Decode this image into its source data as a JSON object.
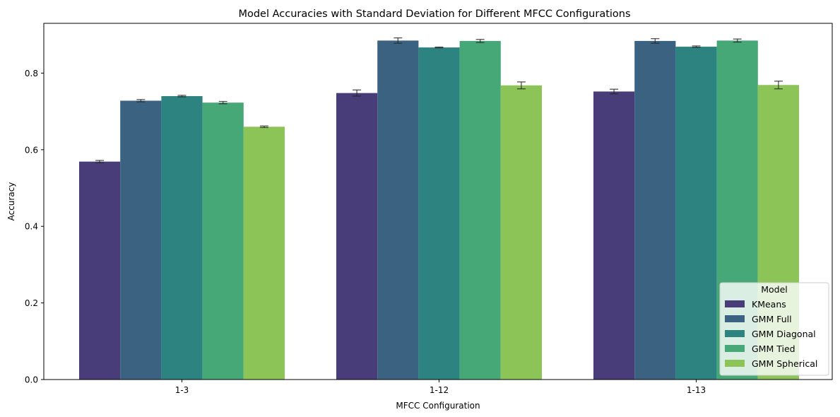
{
  "chart_data": {
    "type": "bar",
    "title": "Model Accuracies with Standard Deviation for Different MFCC Configurations",
    "xlabel": "MFCC Configuration",
    "ylabel": "Accuracy",
    "ylim": [
      0,
      0.93
    ],
    "yticks": [
      "0.0",
      "0.2",
      "0.4",
      "0.6",
      "0.8"
    ],
    "ytick_values": [
      0.0,
      0.2,
      0.4,
      0.6,
      0.8
    ],
    "categories": [
      "1-3",
      "1-12",
      "1-13"
    ],
    "legend": {
      "title": "Model",
      "placement": "lower-right"
    },
    "series": [
      {
        "name": "KMeans",
        "color": "#483d78",
        "values": [
          0.569,
          0.748,
          0.752
        ],
        "errors": [
          0.003,
          0.008,
          0.006
        ]
      },
      {
        "name": "GMM Full",
        "color": "#3b6381",
        "values": [
          0.728,
          0.885,
          0.884
        ],
        "errors": [
          0.003,
          0.007,
          0.006
        ]
      },
      {
        "name": "GMM Diagonal",
        "color": "#2d8380",
        "values": [
          0.74,
          0.867,
          0.869
        ],
        "errors": [
          0.002,
          0.001,
          0.002
        ]
      },
      {
        "name": "GMM Tied",
        "color": "#45a876",
        "values": [
          0.723,
          0.884,
          0.885
        ],
        "errors": [
          0.003,
          0.004,
          0.004
        ]
      },
      {
        "name": "GMM Spherical",
        "color": "#8dc457",
        "values": [
          0.66,
          0.768,
          0.769
        ],
        "errors": [
          0.002,
          0.009,
          0.01
        ]
      }
    ]
  }
}
